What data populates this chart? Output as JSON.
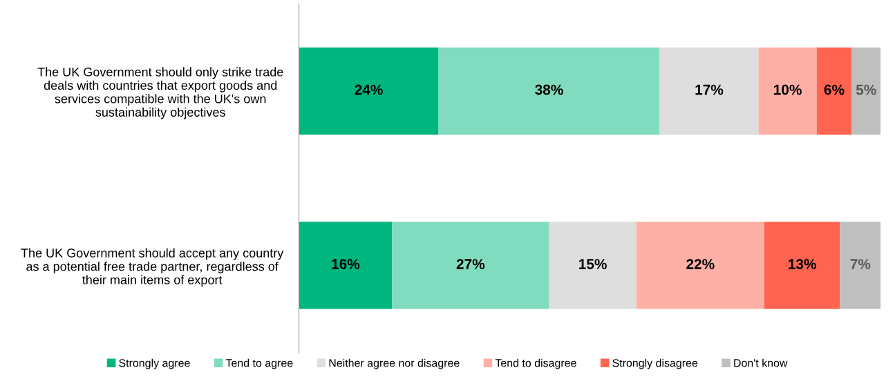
{
  "chart_data": {
    "type": "bar",
    "orientation": "horizontal",
    "stacked": true,
    "categories": [
      "The UK Government should only strike trade\ndeals with countries that export goods and\nservices compatible with the UK's own\nsustainability objectives",
      "The UK Government should accept any country\nas a potential free trade partner, regardless of\ntheir main items of export"
    ],
    "series": [
      {
        "name": "Strongly agree",
        "color": "#00b67f",
        "values": [
          24,
          16
        ],
        "value_labels": [
          "24%",
          "16%"
        ]
      },
      {
        "name": "Tend to agree",
        "color": "#80dbbf",
        "values": [
          38,
          27
        ],
        "value_labels": [
          "38%",
          "27%"
        ]
      },
      {
        "name": "Neither agree nor disagree",
        "color": "#dedede",
        "values": [
          17,
          15
        ],
        "value_labels": [
          "17%",
          "15%"
        ]
      },
      {
        "name": "Tend to disagree",
        "color": "#ffb0a6",
        "values": [
          10,
          22
        ],
        "value_labels": [
          "10%",
          "22%"
        ]
      },
      {
        "name": "Strongly disagree",
        "color": "#ff6450",
        "values": [
          6,
          13
        ],
        "value_labels": [
          "6%",
          "13%"
        ]
      },
      {
        "name": "Don't know",
        "color": "#bfbfbf",
        "values": [
          5,
          7
        ],
        "value_labels": [
          "5%",
          "7%"
        ]
      }
    ],
    "tick_labels": "y",
    "legend": "bottom",
    "grid": false
  }
}
